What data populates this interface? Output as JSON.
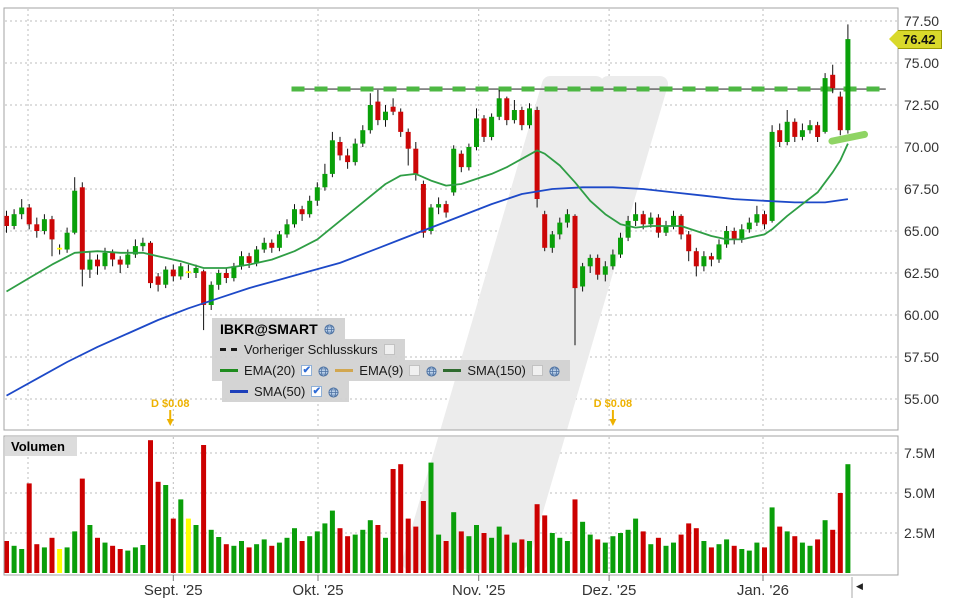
{
  "chart_data": {
    "type": "candlestick+volume",
    "symbol": "IBKR@SMART",
    "last_price": "76.42",
    "volume_panel_title": "Volumen",
    "legend": {
      "title": "IBKR@SMART",
      "items": [
        {
          "row": 1,
          "swatch": "dashes",
          "color": "#1a1a1a",
          "label": "Vorheriger Schlusskurs",
          "checkbox": "unchecked",
          "globe": false
        },
        {
          "row": 2,
          "swatch": "line",
          "color": "#1f8c1f",
          "label": "EMA(20)",
          "checkbox": "checked",
          "globe": true
        },
        {
          "row": 2,
          "swatch": "line",
          "color": "#d2a750",
          "label": "EMA(9)",
          "checkbox": "unchecked",
          "globe": true
        },
        {
          "row": 2,
          "swatch": "line",
          "color": "#2f6b2f",
          "label": "SMA(150)",
          "checkbox": "unchecked",
          "globe": true
        },
        {
          "row": 3,
          "swatch": "line",
          "color": "#1d3fba",
          "label": "SMA(50)",
          "checkbox": "checked",
          "globe": true
        }
      ]
    },
    "price_axis": {
      "ticks": [
        77.5,
        75.0,
        72.5,
        70.0,
        67.5,
        65.0,
        62.5,
        60.0,
        57.5,
        55.0
      ],
      "labels": [
        "77.50",
        "75.00",
        "72.50",
        "70.00",
        "67.50",
        "65.00",
        "62.50",
        "60.00",
        "57.50",
        "55.00"
      ]
    },
    "volume_axis": {
      "ticks": [
        7.5,
        5.0,
        2.5
      ],
      "labels": [
        "7.5M",
        "5.0M",
        "2.5M"
      ]
    },
    "x_axis": {
      "month_labels": [
        {
          "text": "Sept. '25",
          "index": 22
        },
        {
          "text": "Okt. '25",
          "index": 41.1
        },
        {
          "text": "Nov. '25",
          "index": 62.3
        },
        {
          "text": "Dez. '25",
          "index": 79.5
        },
        {
          "text": "Jan. '26",
          "index": 99.8
        }
      ],
      "extra_gridline_index": 2.84
    },
    "prev_close_line": {
      "price": 73.45,
      "start_index": 37.6,
      "end_index": 116,
      "label": "Vorheriger Schlusskurs"
    },
    "dividends": [
      {
        "index": 21.6,
        "label": "D $0.08"
      },
      {
        "index": 80,
        "label": "D $0.08"
      }
    ],
    "trendline": {
      "from": [
        108.9,
        70.35
      ],
      "to": [
        113.2,
        70.75
      ]
    },
    "candles": [
      [
        65.9,
        66.2,
        64.9,
        65.3,
        2.0,
        "r"
      ],
      [
        65.3,
        66.3,
        65.1,
        66.0,
        1.7,
        "g"
      ],
      [
        66.0,
        66.9,
        65.7,
        66.4,
        1.5,
        "g"
      ],
      [
        66.4,
        66.6,
        65.1,
        65.4,
        5.6,
        "r"
      ],
      [
        65.4,
        65.8,
        64.6,
        65.0,
        1.8,
        "r"
      ],
      [
        65.0,
        66.0,
        64.8,
        65.7,
        1.6,
        "g"
      ],
      [
        65.7,
        65.9,
        63.5,
        64.5,
        2.2,
        "r"
      ],
      [
        63.9,
        64.2,
        63.6,
        64.0,
        1.5,
        "y"
      ],
      [
        63.9,
        65.2,
        63.7,
        64.9,
        1.6,
        "g"
      ],
      [
        64.9,
        68.2,
        64.8,
        67.4,
        2.6,
        "g"
      ],
      [
        67.6,
        67.9,
        61.7,
        62.7,
        5.9,
        "r"
      ],
      [
        62.7,
        63.8,
        62.2,
        63.3,
        3.0,
        "g"
      ],
      [
        63.3,
        63.6,
        62.4,
        62.9,
        2.2,
        "r"
      ],
      [
        62.9,
        64.0,
        62.7,
        63.7,
        1.9,
        "g"
      ],
      [
        63.7,
        63.9,
        62.9,
        63.3,
        1.7,
        "r"
      ],
      [
        63.3,
        63.5,
        62.5,
        63.0,
        1.5,
        "r"
      ],
      [
        63.0,
        63.9,
        62.8,
        63.6,
        1.4,
        "g"
      ],
      [
        63.6,
        64.5,
        63.4,
        64.1,
        1.6,
        "g"
      ],
      [
        64.1,
        64.6,
        63.8,
        64.3,
        1.75,
        "g"
      ],
      [
        64.3,
        64.4,
        61.6,
        61.9,
        8.3,
        "r"
      ],
      [
        62.3,
        62.5,
        61.4,
        61.8,
        5.7,
        "r"
      ],
      [
        61.8,
        62.9,
        61.6,
        62.7,
        5.5,
        "g"
      ],
      [
        62.7,
        63.0,
        62.0,
        62.3,
        3.4,
        "r"
      ],
      [
        62.3,
        63.1,
        62.1,
        62.9,
        4.6,
        "g"
      ],
      [
        62.5,
        63.0,
        62.2,
        62.6,
        3.4,
        "y"
      ],
      [
        62.5,
        63.0,
        62.2,
        62.8,
        3.0,
        "g"
      ],
      [
        62.6,
        62.7,
        59.1,
        60.6,
        8.0,
        "r"
      ],
      [
        60.6,
        62.0,
        60.3,
        61.8,
        2.7,
        "g"
      ],
      [
        61.8,
        62.7,
        61.5,
        62.5,
        2.25,
        "g"
      ],
      [
        62.5,
        62.8,
        61.9,
        62.2,
        1.8,
        "r"
      ],
      [
        62.2,
        63.1,
        62.0,
        62.9,
        1.7,
        "g"
      ],
      [
        62.9,
        63.8,
        62.7,
        63.5,
        2.0,
        "g"
      ],
      [
        63.5,
        63.7,
        62.8,
        63.1,
        1.6,
        "r"
      ],
      [
        63.1,
        64.1,
        62.9,
        63.9,
        1.8,
        "g"
      ],
      [
        63.9,
        64.6,
        63.7,
        64.3,
        2.1,
        "g"
      ],
      [
        64.3,
        64.5,
        63.7,
        64.0,
        1.7,
        "r"
      ],
      [
        64.0,
        65.0,
        63.8,
        64.8,
        1.9,
        "g"
      ],
      [
        64.8,
        65.7,
        64.6,
        65.4,
        2.2,
        "g"
      ],
      [
        65.4,
        66.6,
        65.2,
        66.3,
        2.8,
        "g"
      ],
      [
        66.3,
        66.5,
        65.6,
        66.0,
        2.0,
        "r"
      ],
      [
        66.0,
        67.1,
        65.8,
        66.8,
        2.3,
        "g"
      ],
      [
        66.8,
        67.9,
        66.5,
        67.6,
        2.6,
        "g"
      ],
      [
        67.6,
        69.0,
        67.4,
        68.4,
        3.1,
        "g"
      ],
      [
        68.4,
        70.9,
        68.2,
        70.4,
        3.9,
        "g"
      ],
      [
        70.3,
        70.6,
        69.2,
        69.5,
        2.8,
        "r"
      ],
      [
        69.5,
        69.9,
        68.7,
        69.1,
        2.3,
        "r"
      ],
      [
        69.1,
        70.5,
        68.9,
        70.2,
        2.4,
        "g"
      ],
      [
        70.2,
        71.3,
        70.0,
        71.0,
        2.7,
        "g"
      ],
      [
        71.0,
        73.2,
        70.8,
        72.5,
        3.3,
        "g"
      ],
      [
        72.7,
        73.4,
        71.3,
        71.6,
        3.0,
        "r"
      ],
      [
        71.6,
        72.5,
        71.2,
        72.1,
        2.2,
        "g"
      ],
      [
        72.4,
        72.9,
        71.9,
        72.1,
        6.5,
        "r"
      ],
      [
        72.1,
        72.3,
        70.6,
        70.9,
        6.8,
        "r"
      ],
      [
        70.9,
        71.1,
        68.9,
        69.9,
        3.4,
        "r"
      ],
      [
        69.9,
        70.3,
        68.0,
        68.4,
        2.9,
        "r"
      ],
      [
        67.8,
        68.0,
        64.6,
        64.9,
        4.5,
        "r"
      ],
      [
        65.0,
        66.6,
        64.8,
        66.4,
        6.9,
        "g"
      ],
      [
        66.4,
        67.0,
        66.0,
        66.6,
        2.4,
        "g"
      ],
      [
        66.6,
        66.8,
        65.8,
        66.1,
        2.0,
        "r"
      ],
      [
        67.3,
        70.1,
        67.1,
        69.9,
        3.8,
        "g"
      ],
      [
        69.6,
        69.8,
        68.5,
        68.8,
        2.6,
        "r"
      ],
      [
        68.8,
        70.2,
        68.6,
        70.0,
        2.3,
        "g"
      ],
      [
        70.0,
        72.3,
        69.8,
        71.7,
        3.0,
        "g"
      ],
      [
        71.7,
        71.9,
        70.3,
        70.6,
        2.5,
        "r"
      ],
      [
        70.6,
        72.0,
        70.4,
        71.8,
        2.2,
        "g"
      ],
      [
        71.8,
        73.4,
        71.6,
        72.9,
        2.9,
        "g"
      ],
      [
        72.9,
        73.0,
        71.3,
        71.6,
        2.4,
        "r"
      ],
      [
        71.6,
        72.8,
        71.4,
        72.2,
        1.9,
        "g"
      ],
      [
        72.2,
        72.4,
        71.0,
        71.3,
        2.1,
        "r"
      ],
      [
        71.3,
        72.6,
        71.1,
        72.3,
        2.0,
        "g"
      ],
      [
        72.2,
        72.4,
        66.4,
        66.9,
        4.3,
        "r"
      ],
      [
        66.0,
        66.2,
        63.8,
        64.0,
        3.6,
        "r"
      ],
      [
        64.0,
        65.0,
        63.7,
        64.8,
        2.5,
        "g"
      ],
      [
        64.8,
        65.8,
        64.5,
        65.5,
        2.2,
        "g"
      ],
      [
        65.5,
        66.3,
        65.2,
        66.0,
        2.0,
        "g"
      ],
      [
        65.9,
        66.0,
        58.2,
        61.6,
        4.6,
        "r"
      ],
      [
        61.7,
        63.1,
        61.4,
        62.9,
        3.2,
        "g"
      ],
      [
        62.9,
        63.6,
        62.5,
        63.4,
        2.4,
        "g"
      ],
      [
        63.4,
        63.6,
        62.1,
        62.4,
        2.1,
        "r"
      ],
      [
        62.4,
        63.2,
        62.0,
        62.9,
        1.9,
        "g"
      ],
      [
        62.9,
        63.9,
        62.7,
        63.6,
        2.3,
        "g"
      ],
      [
        63.6,
        64.9,
        63.4,
        64.6,
        2.5,
        "g"
      ],
      [
        64.6,
        65.9,
        64.4,
        65.6,
        2.7,
        "g"
      ],
      [
        65.6,
        66.7,
        65.3,
        66.0,
        3.4,
        "g"
      ],
      [
        66.0,
        66.2,
        65.1,
        65.4,
        2.6,
        "r"
      ],
      [
        65.4,
        66.1,
        65.2,
        65.8,
        1.8,
        "g"
      ],
      [
        65.8,
        66.0,
        64.6,
        64.9,
        2.2,
        "r"
      ],
      [
        64.9,
        65.6,
        64.7,
        65.3,
        1.7,
        "g"
      ],
      [
        65.3,
        66.2,
        65.1,
        65.9,
        1.9,
        "g"
      ],
      [
        65.9,
        66.0,
        64.5,
        64.8,
        2.4,
        "r"
      ],
      [
        64.8,
        65.0,
        63.2,
        63.8,
        3.1,
        "r"
      ],
      [
        63.8,
        64.0,
        62.3,
        62.9,
        2.8,
        "r"
      ],
      [
        62.9,
        63.8,
        62.6,
        63.5,
        2.0,
        "g"
      ],
      [
        63.5,
        63.7,
        62.9,
        63.3,
        1.6,
        "r"
      ],
      [
        63.3,
        64.5,
        63.1,
        64.2,
        1.8,
        "g"
      ],
      [
        64.2,
        65.3,
        64.0,
        65.0,
        2.1,
        "g"
      ],
      [
        65.0,
        65.2,
        64.2,
        64.5,
        1.7,
        "r"
      ],
      [
        64.5,
        65.4,
        64.3,
        65.1,
        1.5,
        "g"
      ],
      [
        65.1,
        65.8,
        64.9,
        65.5,
        1.4,
        "g"
      ],
      [
        65.5,
        66.5,
        65.3,
        66.0,
        1.9,
        "g"
      ],
      [
        66.0,
        66.2,
        65.1,
        65.4,
        1.6,
        "r"
      ],
      [
        65.6,
        71.3,
        65.5,
        70.9,
        4.1,
        "g"
      ],
      [
        71.0,
        71.4,
        70.0,
        70.3,
        2.9,
        "r"
      ],
      [
        70.3,
        72.2,
        70.1,
        71.5,
        2.6,
        "g"
      ],
      [
        71.5,
        71.7,
        70.3,
        70.6,
        2.3,
        "r"
      ],
      [
        70.6,
        71.4,
        70.4,
        71.0,
        1.9,
        "g"
      ],
      [
        71.0,
        71.6,
        70.8,
        71.3,
        1.7,
        "g"
      ],
      [
        71.3,
        71.5,
        70.3,
        70.6,
        2.1,
        "r"
      ],
      [
        70.9,
        74.4,
        70.8,
        74.1,
        3.3,
        "g"
      ],
      [
        74.3,
        74.9,
        73.2,
        73.5,
        2.7,
        "r"
      ],
      [
        73.0,
        73.3,
        70.7,
        71.0,
        5.0,
        "r"
      ],
      [
        71.0,
        77.3,
        70.8,
        76.42,
        6.8,
        "g"
      ]
    ],
    "ema20": [
      [
        0,
        61.4
      ],
      [
        3,
        62.2
      ],
      [
        6,
        63.0
      ],
      [
        9,
        63.7
      ],
      [
        12,
        63.8
      ],
      [
        15,
        63.7
      ],
      [
        18,
        63.7
      ],
      [
        20,
        63.5
      ],
      [
        23,
        63.2
      ],
      [
        26,
        62.8
      ],
      [
        29,
        62.8
      ],
      [
        32,
        63.0
      ],
      [
        35,
        63.3
      ],
      [
        38,
        63.8
      ],
      [
        41,
        64.5
      ],
      [
        44,
        65.6
      ],
      [
        47,
        66.7
      ],
      [
        50,
        67.8
      ],
      [
        52,
        68.3
      ],
      [
        54,
        68.4
      ],
      [
        56,
        68.0
      ],
      [
        58,
        67.7
      ],
      [
        60,
        67.8
      ],
      [
        62,
        68.1
      ],
      [
        64,
        68.4
      ],
      [
        66,
        68.8
      ],
      [
        68,
        69.3
      ],
      [
        70,
        69.8
      ],
      [
        71,
        69.6
      ],
      [
        73,
        68.9
      ],
      [
        75,
        67.9
      ],
      [
        77,
        66.8
      ],
      [
        79,
        66.0
      ],
      [
        81,
        65.4
      ],
      [
        83,
        65.2
      ],
      [
        85,
        65.3
      ],
      [
        87,
        65.3
      ],
      [
        89,
        65.3
      ],
      [
        91,
        65.0
      ],
      [
        93,
        64.7
      ],
      [
        95,
        64.5
      ],
      [
        97,
        64.5
      ],
      [
        99,
        64.7
      ],
      [
        100,
        64.8
      ],
      [
        101,
        65.1
      ],
      [
        103,
        65.9
      ],
      [
        105,
        66.6
      ],
      [
        107,
        67.3
      ],
      [
        109,
        68.5
      ],
      [
        110,
        69.2
      ],
      [
        111,
        70.2
      ]
    ],
    "sma50": [
      [
        0,
        55.2
      ],
      [
        4,
        56.2
      ],
      [
        8,
        57.2
      ],
      [
        12,
        58.1
      ],
      [
        16,
        58.9
      ],
      [
        20,
        59.7
      ],
      [
        24,
        60.4
      ],
      [
        28,
        61.0
      ],
      [
        32,
        61.6
      ],
      [
        36,
        62.1
      ],
      [
        40,
        62.6
      ],
      [
        44,
        63.1
      ],
      [
        48,
        63.8
      ],
      [
        52,
        64.5
      ],
      [
        56,
        65.2
      ],
      [
        60,
        65.9
      ],
      [
        64,
        66.6
      ],
      [
        68,
        67.2
      ],
      [
        72,
        67.5
      ],
      [
        76,
        67.6
      ],
      [
        80,
        67.6
      ],
      [
        84,
        67.5
      ],
      [
        88,
        67.3
      ],
      [
        92,
        67.1
      ],
      [
        96,
        66.9
      ],
      [
        100,
        66.8
      ],
      [
        104,
        66.7
      ],
      [
        108,
        66.7
      ],
      [
        111,
        66.9
      ]
    ],
    "colors": {
      "up": "#0aa00a",
      "down": "#cc0707",
      "wick": "#111111",
      "vol_up": "#0a9e0a",
      "vol_down": "#cc0000",
      "vol_neutral": "#ffff00",
      "ema20": "#2f9e45",
      "sma50": "#1d49c8",
      "prev_close": "#4db843",
      "dividend": "#eeb200",
      "trendline": "#8fd464",
      "grid": "#bdbdbd",
      "border": "#a3a3a3",
      "tag_bg": "#d9d92b",
      "watermark": "#ececec"
    }
  },
  "icons": {
    "check": "✔",
    "nav_arrow": "◀",
    "globe": "globe-icon"
  }
}
